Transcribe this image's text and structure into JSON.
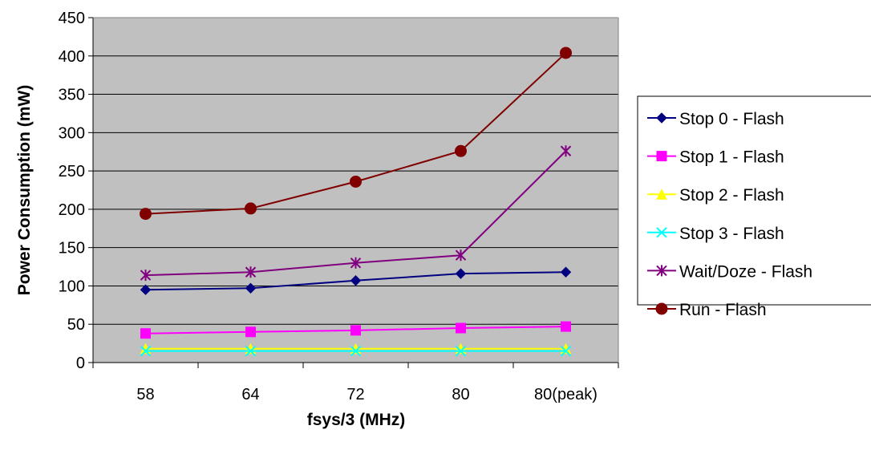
{
  "chart_data": {
    "type": "line",
    "title": "",
    "xlabel": "fsys/3 (MHz)",
    "ylabel": "Power Consumption (mW)",
    "categories": [
      "58",
      "64",
      "72",
      "80",
      "80(peak)"
    ],
    "ylim": [
      0,
      450
    ],
    "yticks": [
      0,
      50,
      100,
      150,
      200,
      250,
      300,
      350,
      400,
      450
    ],
    "grid": true,
    "plot_background": "#c0c0c0",
    "legend_position": "right",
    "series": [
      {
        "name": "Stop 0 - Flash",
        "color": "#000080",
        "marker": "diamond",
        "values": [
          95,
          97,
          107,
          116,
          118
        ]
      },
      {
        "name": "Stop 1 - Flash",
        "color": "#ff00ff",
        "marker": "square",
        "values": [
          38,
          40,
          42,
          45,
          47
        ]
      },
      {
        "name": "Stop 2 - Flash",
        "color": "#ffff00",
        "marker": "triangle",
        "values": [
          18,
          18,
          18,
          18,
          18
        ]
      },
      {
        "name": "Stop 3 - Flash",
        "color": "#00ffff",
        "marker": "x",
        "values": [
          15,
          15,
          15,
          15,
          15
        ]
      },
      {
        "name": "Wait/Doze - Flash",
        "color": "#800080",
        "marker": "asterisk",
        "values": [
          114,
          118,
          130,
          140,
          276
        ]
      },
      {
        "name": "Run - Flash",
        "color": "#800000",
        "marker": "circle",
        "values": [
          194,
          201,
          236,
          276,
          404
        ]
      }
    ]
  }
}
